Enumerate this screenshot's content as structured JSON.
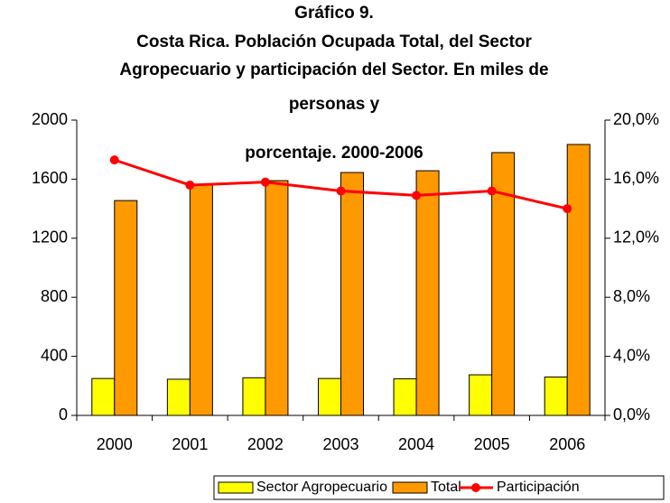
{
  "chart_data": {
    "type": "bar-line",
    "title": [
      "Gráfico 9.",
      "Costa Rica.  Población Ocupada Total, del Sector",
      "Agropecuario y participación del Sector.  En miles de",
      "personas y",
      "porcentaje.  2000-2006"
    ],
    "categories": [
      "2000",
      "2001",
      "2002",
      "2003",
      "2004",
      "2005",
      "2006"
    ],
    "series": [
      {
        "name": "Sector  Agropecuario",
        "color": "#ffff00",
        "type": "bar",
        "values": [
          250,
          245,
          255,
          250,
          248,
          275,
          260
        ]
      },
      {
        "name": "Total",
        "color": "#ff9900",
        "type": "bar",
        "values": [
          1455,
          1565,
          1590,
          1645,
          1657,
          1780,
          1835
        ]
      },
      {
        "name": "Participación",
        "color": "#ff0000",
        "type": "line",
        "axis": "y2",
        "values": [
          17.3,
          15.6,
          15.8,
          15.2,
          14.9,
          15.2,
          14.0
        ]
      }
    ],
    "ylim": [
      0,
      2000
    ],
    "yticks": [
      0,
      400,
      800,
      1200,
      1600,
      2000
    ],
    "y2lim": [
      0,
      20
    ],
    "y2ticks": [
      {
        "value": 0,
        "label": "0,0%"
      },
      {
        "value": 4,
        "label": "4,0%"
      },
      {
        "value": 8,
        "label": "8,0%"
      },
      {
        "value": 12,
        "label": "12,0%"
      },
      {
        "value": 16,
        "label": "16,0%"
      },
      {
        "value": 20,
        "label": "20,0%"
      }
    ],
    "grid": false,
    "legend": "bottom"
  }
}
